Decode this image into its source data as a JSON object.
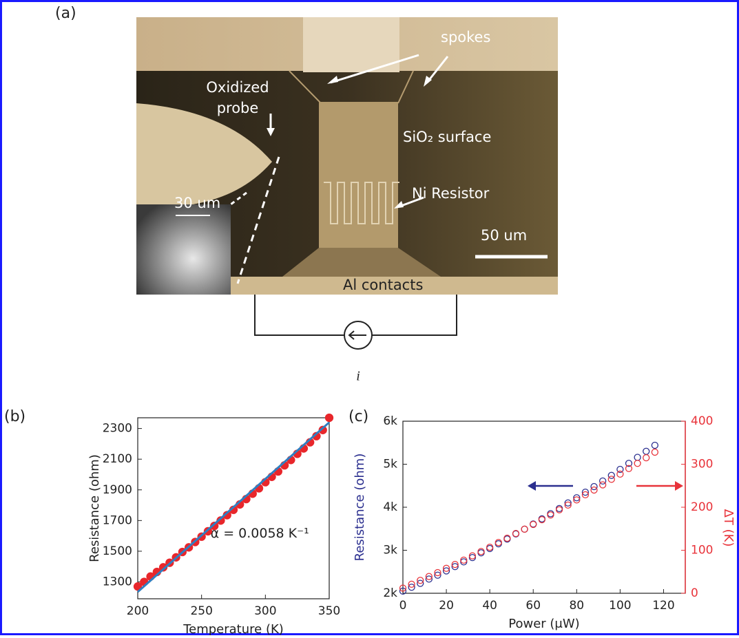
{
  "panel_labels": [
    "(a)",
    "(b)",
    "(c)"
  ],
  "image_a": {
    "spokes": "spokes",
    "probe": [
      "Oxidized",
      "probe"
    ],
    "surface": "SiO₂ surface",
    "resistor": "Ni Resistor",
    "scale_bar": "50 um",
    "inset_scale": "30 um",
    "contacts": "Al contacts",
    "current": "i"
  },
  "chart_data": [
    {
      "type": "scatter",
      "xlabel": "Temperature (K)",
      "ylabel": "Resistance (ohm)",
      "annotation": "α = 0.0058 K⁻¹",
      "xlim": [
        200,
        350
      ],
      "ylim": [
        1190,
        2370
      ],
      "xticks": [
        200,
        250,
        300,
        350
      ],
      "yticks": [
        1300,
        1500,
        1700,
        1900,
        2100,
        2300
      ],
      "series": [
        {
          "mode": "markers",
          "marker": "filled",
          "color": "#e8262b",
          "x": [
            200,
            205,
            210,
            215,
            220,
            225,
            230,
            235,
            240,
            245,
            250,
            255,
            260,
            265,
            270,
            275,
            280,
            285,
            290,
            295,
            300,
            305,
            310,
            315,
            320,
            325,
            330,
            335,
            340,
            345,
            350
          ],
          "values": [
            1270,
            1300,
            1335,
            1365,
            1395,
            1425,
            1460,
            1495,
            1525,
            1560,
            1595,
            1630,
            1665,
            1700,
            1735,
            1770,
            1805,
            1840,
            1875,
            1910,
            1950,
            1985,
            2020,
            2060,
            2095,
            2135,
            2170,
            2210,
            2250,
            2290,
            2370
          ]
        },
        {
          "mode": "line",
          "color": "#2f7fc1",
          "x": [
            200,
            350
          ],
          "values": [
            1235,
            2340
          ]
        }
      ]
    },
    {
      "type": "scatter",
      "xlabel": "Power (μW)",
      "ylabel": "Resistance (ohm)",
      "y2label": "ΔT (K)",
      "ylabel_color": "#2b2f8f",
      "y2_color": "#e8333a",
      "xlim": [
        0,
        130
      ],
      "ylim": [
        2000,
        6000
      ],
      "y2lim": [
        0,
        400
      ],
      "xticks": [
        0,
        20,
        40,
        60,
        80,
        100,
        120
      ],
      "yticks": [
        {
          "value": 2000,
          "label": "2k"
        },
        {
          "value": 3000,
          "label": "3k"
        },
        {
          "value": 4000,
          "label": "4k"
        },
        {
          "value": 5000,
          "label": "5k"
        },
        {
          "value": 6000,
          "label": "6k"
        }
      ],
      "y2ticks": [
        0,
        100,
        200,
        300,
        400
      ],
      "x": [
        0,
        4,
        8,
        12,
        16,
        20,
        24,
        28,
        32,
        36,
        40,
        44,
        48,
        52,
        56,
        60,
        64,
        68,
        72,
        76,
        80,
        84,
        88,
        92,
        96,
        100,
        104,
        108,
        112,
        116
      ],
      "series": [
        {
          "mode": "markers",
          "marker": "open",
          "color": "#2b2f8f",
          "values": [
            2050,
            2140,
            2230,
            2330,
            2420,
            2520,
            2620,
            2730,
            2830,
            2940,
            3040,
            3150,
            3260,
            3380,
            3490,
            3610,
            3730,
            3850,
            3970,
            4100,
            4220,
            4350,
            4480,
            4610,
            4740,
            4880,
            5020,
            5160,
            5300,
            5440
          ]
        },
        {
          "mode": "markers",
          "marker": "open",
          "color": "#e8333a",
          "axis": "y2",
          "values": [
            12,
            21,
            30,
            39,
            48,
            58,
            67,
            77,
            87,
            97,
            107,
            118,
            128,
            139,
            149,
            160,
            171,
            182,
            194,
            205,
            217,
            229,
            240,
            252,
            265,
            277,
            290,
            302,
            315,
            328
          ]
        }
      ]
    }
  ]
}
